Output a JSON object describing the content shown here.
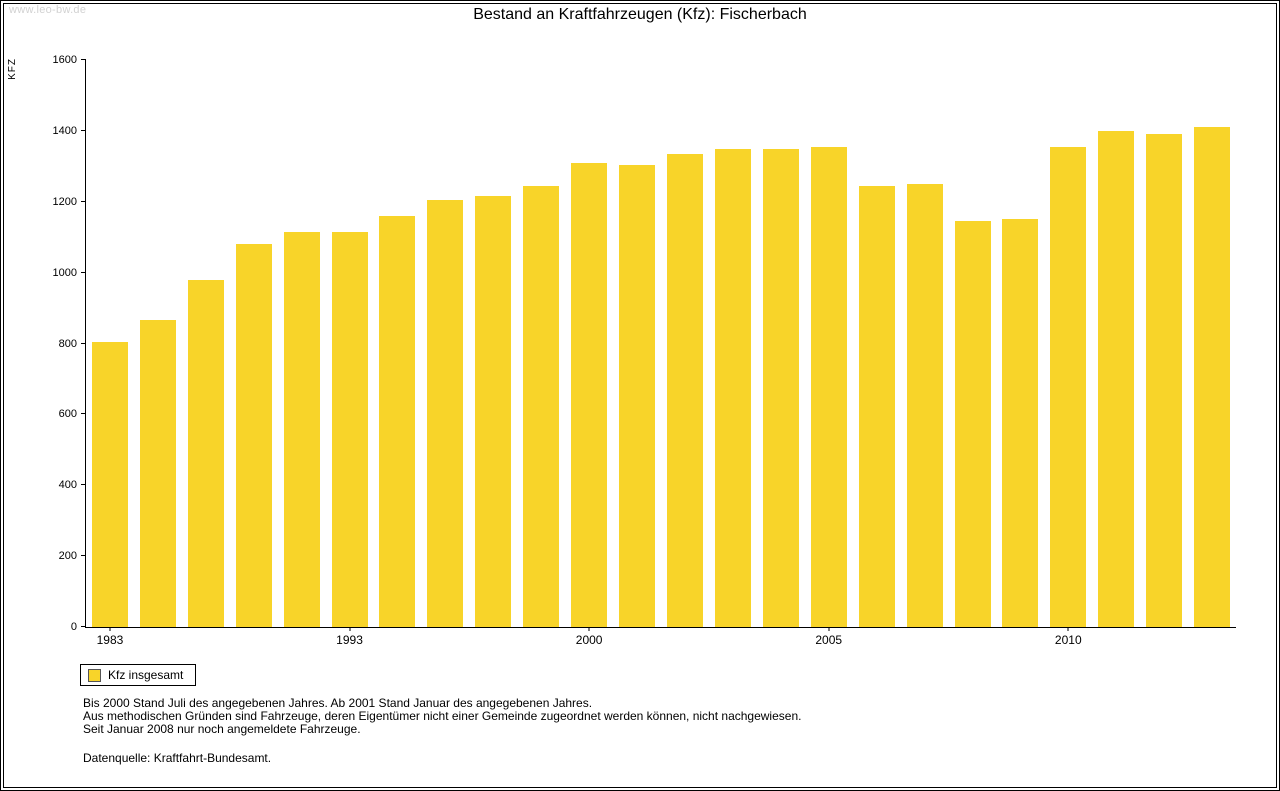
{
  "page": {
    "watermark": "www.leo-bw.de",
    "title": "Bestand an Kraftfahrzeugen (Kfz): Fischerbach"
  },
  "chart_data": {
    "type": "bar",
    "title": "Bestand an Kraftfahrzeugen (Kfz): Fischerbach",
    "xlabel": "",
    "ylabel": "KFZ",
    "ylim": [
      0,
      1600
    ],
    "y_tick_step": 200,
    "grid": false,
    "legend_position": "bottom-left",
    "bar_color": "#F8D429",
    "categories": [
      "1983",
      "1985",
      "1987",
      "1989",
      "1991",
      "1993",
      "1995",
      "1997",
      "1998",
      "1999",
      "2000",
      "2001",
      "2002",
      "2003",
      "2004",
      "2005",
      "2006",
      "2007",
      "2008",
      "2009",
      "2010",
      "2011",
      "2012",
      "2013"
    ],
    "values": [
      805,
      865,
      980,
      1080,
      1115,
      1115,
      1160,
      1205,
      1215,
      1245,
      1310,
      1305,
      1335,
      1350,
      1350,
      1355,
      1245,
      1250,
      1145,
      1150,
      1355,
      1400,
      1390,
      1410
    ],
    "shown_x_ticks": [
      {
        "index": 0,
        "label": "1983"
      },
      {
        "index": 5,
        "label": "1993"
      },
      {
        "index": 10,
        "label": "2000"
      },
      {
        "index": 15,
        "label": "2005"
      },
      {
        "index": 20,
        "label": "2010"
      }
    ],
    "series_name": "Kfz insgesamt"
  },
  "legend": {
    "label": "Kfz insgesamt"
  },
  "footnotes": {
    "line1": "Bis 2000 Stand Juli des angegebenen Jahres. Ab 2001 Stand Januar des angegebenen Jahres.",
    "line2": "Aus methodischen Gründen sind Fahrzeuge, deren Eigentümer nicht einer Gemeinde zugeordnet werden können, nicht nachgewiesen.",
    "line3": "Seit Januar 2008 nur noch angemeldete Fahrzeuge.",
    "source": "Datenquelle: Kraftfahrt-Bundesamt."
  }
}
